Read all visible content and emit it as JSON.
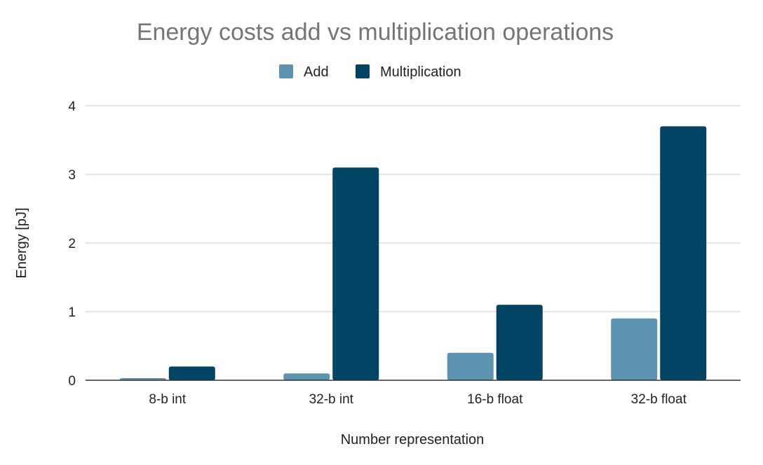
{
  "chart_data": {
    "type": "bar",
    "title": "Energy costs add vs multiplication operations",
    "xlabel": "Number representation",
    "ylabel": "Energy [pJ]",
    "categories": [
      "8-b int",
      "32-b int",
      "16-b float",
      "32-b float"
    ],
    "series": [
      {
        "name": "Add",
        "color": "#5b93b0",
        "values": [
          0.03,
          0.1,
          0.4,
          0.9
        ]
      },
      {
        "name": "Multiplication",
        "color": "#004363",
        "values": [
          0.2,
          3.1,
          1.1,
          3.7
        ]
      }
    ],
    "ylim": [
      0,
      4
    ],
    "yticks": [
      "0",
      "1",
      "2",
      "3",
      "4"
    ],
    "grid": true,
    "legend_position": "top"
  }
}
